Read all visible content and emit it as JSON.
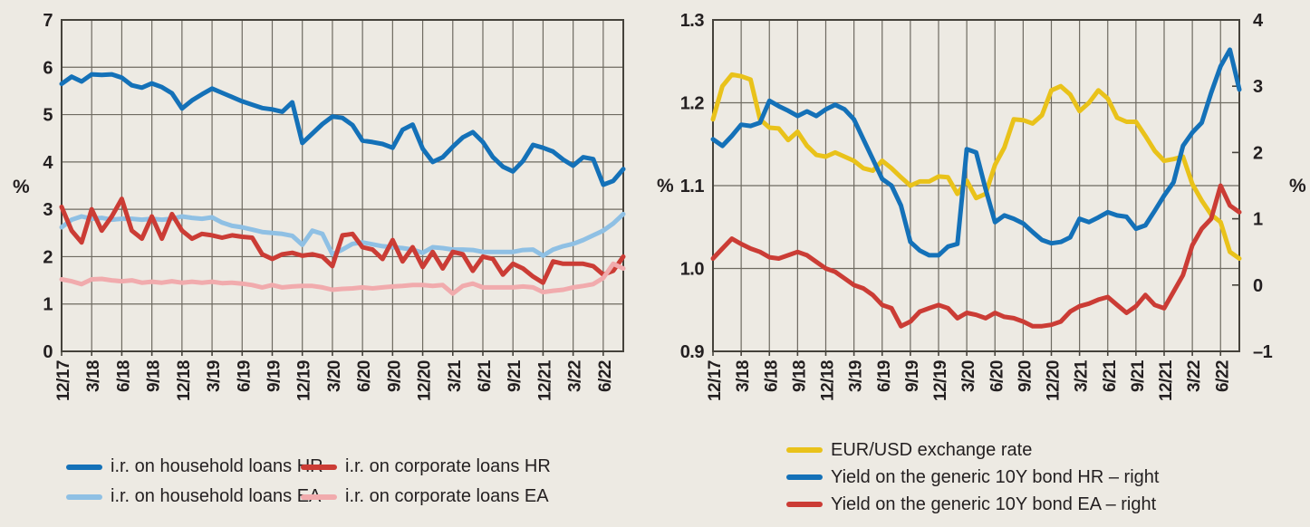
{
  "page": {
    "background": "#edeae3",
    "text_color": "#231f20",
    "gridline_color": "#6e6a61",
    "border_color": "#45423b"
  },
  "chart_data": [
    {
      "id": "loan-interest-rates",
      "type": "line",
      "x_frequency": "monthly",
      "x_start": "12/17",
      "x_end": "8/22",
      "months_total": 57,
      "x_tick_labels": [
        "12/17",
        "3/18",
        "6/18",
        "9/18",
        "12/18",
        "3/19",
        "6/19",
        "9/19",
        "12/19",
        "3/20",
        "6/20",
        "9/20",
        "12/20",
        "3/21",
        "6/21",
        "9/21",
        "12/21",
        "3/22",
        "6/22"
      ],
      "y_left": {
        "unit": "%",
        "min": 0,
        "max": 7,
        "tick_values": [
          0,
          1,
          2,
          3,
          4,
          5,
          6,
          7
        ],
        "tick_labels": [
          "0",
          "1",
          "2",
          "3",
          "4",
          "5",
          "6",
          "7"
        ]
      },
      "legend_position": "bottom",
      "series": [
        {
          "name": "i.r. on household loans HR",
          "color": "#1471b8",
          "axis": "left",
          "values": [
            5.65,
            5.8,
            5.7,
            5.85,
            5.84,
            5.85,
            5.78,
            5.62,
            5.57,
            5.66,
            5.58,
            5.45,
            5.13,
            5.3,
            5.43,
            5.55,
            5.46,
            5.37,
            5.28,
            5.21,
            5.14,
            5.11,
            5.06,
            5.26,
            4.4,
            4.6,
            4.8,
            4.96,
            4.93,
            4.78,
            4.45,
            4.42,
            4.38,
            4.3,
            4.68,
            4.79,
            4.28,
            4.0,
            4.1,
            4.32,
            4.52,
            4.63,
            4.42,
            4.1,
            3.9,
            3.8,
            4.02,
            4.36,
            4.3,
            4.22,
            4.05,
            3.92,
            4.1,
            4.06,
            3.52,
            3.6,
            3.85
          ]
        },
        {
          "name": "i.r. on household loans EA",
          "color": "#8fc0e4",
          "axis": "left",
          "values": [
            2.62,
            2.78,
            2.85,
            2.8,
            2.82,
            2.78,
            2.8,
            2.8,
            2.78,
            2.8,
            2.78,
            2.8,
            2.85,
            2.82,
            2.8,
            2.83,
            2.72,
            2.65,
            2.62,
            2.57,
            2.52,
            2.5,
            2.48,
            2.44,
            2.25,
            2.55,
            2.48,
            2.05,
            2.15,
            2.27,
            2.3,
            2.26,
            2.22,
            2.2,
            2.18,
            2.15,
            2.08,
            2.2,
            2.18,
            2.15,
            2.15,
            2.14,
            2.1,
            2.1,
            2.1,
            2.1,
            2.14,
            2.15,
            2.02,
            2.15,
            2.22,
            2.27,
            2.35,
            2.45,
            2.55,
            2.7,
            2.9
          ]
        },
        {
          "name": "i.r. on corporate loans HR",
          "color": "#cb3c35",
          "axis": "left",
          "values": [
            3.05,
            2.55,
            2.3,
            3.0,
            2.55,
            2.85,
            3.22,
            2.55,
            2.38,
            2.85,
            2.38,
            2.9,
            2.55,
            2.38,
            2.48,
            2.45,
            2.4,
            2.45,
            2.42,
            2.4,
            2.05,
            1.95,
            2.05,
            2.08,
            2.02,
            2.05,
            2.0,
            1.8,
            2.45,
            2.48,
            2.2,
            2.15,
            1.95,
            2.35,
            1.9,
            2.2,
            1.78,
            2.1,
            1.75,
            2.1,
            2.05,
            1.7,
            2.0,
            1.95,
            1.62,
            1.85,
            1.75,
            1.58,
            1.45,
            1.9,
            1.85,
            1.85,
            1.85,
            1.8,
            1.62,
            1.7,
            2.0
          ]
        },
        {
          "name": "i.r. on corporate loans EA",
          "color": "#f1abad",
          "axis": "left",
          "values": [
            1.52,
            1.48,
            1.42,
            1.52,
            1.53,
            1.5,
            1.48,
            1.5,
            1.45,
            1.47,
            1.45,
            1.48,
            1.45,
            1.47,
            1.45,
            1.47,
            1.44,
            1.45,
            1.43,
            1.4,
            1.35,
            1.4,
            1.35,
            1.37,
            1.38,
            1.38,
            1.35,
            1.3,
            1.32,
            1.33,
            1.35,
            1.33,
            1.35,
            1.37,
            1.38,
            1.4,
            1.4,
            1.38,
            1.4,
            1.22,
            1.38,
            1.43,
            1.35,
            1.35,
            1.35,
            1.35,
            1.37,
            1.35,
            1.25,
            1.28,
            1.3,
            1.35,
            1.38,
            1.42,
            1.55,
            1.85,
            1.75
          ]
        }
      ]
    },
    {
      "id": "fx-and-bond-yields",
      "type": "line",
      "x_frequency": "monthly",
      "x_start": "12/17",
      "x_end": "8/22",
      "months_total": 57,
      "x_tick_labels": [
        "12/17",
        "3/18",
        "6/18",
        "9/18",
        "12/18",
        "3/19",
        "6/19",
        "9/19",
        "12/19",
        "3/20",
        "6/20",
        "9/20",
        "12/20",
        "3/21",
        "6/21",
        "9/21",
        "12/21",
        "3/22",
        "6/22"
      ],
      "y_left": {
        "unit": "%",
        "min": 0.9,
        "max": 1.3,
        "tick_values": [
          0.9,
          1.0,
          1.1,
          1.2,
          1.3
        ],
        "tick_labels": [
          "0.9",
          "1.0",
          "1.1",
          "1.2",
          "1.3"
        ]
      },
      "y_right": {
        "unit": "%",
        "min": -1,
        "max": 4,
        "tick_values": [
          -1,
          0,
          1,
          2,
          3,
          4
        ],
        "tick_labels": [
          "–1",
          "0",
          "1",
          "2",
          "3",
          "4"
        ]
      },
      "legend_position": "bottom",
      "series": [
        {
          "name": "EUR/USD exchange rate",
          "color": "#e9c21a",
          "axis": "left",
          "values": [
            1.18,
            1.22,
            1.234,
            1.232,
            1.228,
            1.18,
            1.17,
            1.169,
            1.155,
            1.165,
            1.148,
            1.137,
            1.135,
            1.14,
            1.135,
            1.13,
            1.121,
            1.118,
            1.13,
            1.121,
            1.11,
            1.1,
            1.105,
            1.105,
            1.111,
            1.11,
            1.09,
            1.106,
            1.085,
            1.09,
            1.125,
            1.146,
            1.18,
            1.179,
            1.175,
            1.185,
            1.215,
            1.22,
            1.21,
            1.19,
            1.2,
            1.215,
            1.205,
            1.182,
            1.177,
            1.177,
            1.16,
            1.142,
            1.13,
            1.132,
            1.135,
            1.102,
            1.082,
            1.065,
            1.056,
            1.02,
            1.012
          ]
        },
        {
          "name": "Yield on the generic 10Y bond EA – right",
          "color": "#cb3c35",
          "axis": "right",
          "values": [
            0.4,
            0.55,
            0.7,
            0.62,
            0.55,
            0.5,
            0.42,
            0.4,
            0.45,
            0.5,
            0.45,
            0.35,
            0.25,
            0.2,
            0.1,
            0.0,
            -0.05,
            -0.15,
            -0.3,
            -0.35,
            -0.62,
            -0.55,
            -0.4,
            -0.35,
            -0.3,
            -0.35,
            -0.5,
            -0.42,
            -0.45,
            -0.5,
            -0.42,
            -0.48,
            -0.5,
            -0.55,
            -0.62,
            -0.62,
            -0.6,
            -0.55,
            -0.4,
            -0.32,
            -0.28,
            -0.22,
            -0.18,
            -0.3,
            -0.42,
            -0.32,
            -0.15,
            -0.3,
            -0.35,
            -0.1,
            0.15,
            0.6,
            0.85,
            1.0,
            1.5,
            1.2,
            1.1
          ]
        },
        {
          "name": "Yield on the generic 10Y bond HR – right",
          "color": "#1471b8",
          "axis": "right",
          "values": [
            2.2,
            2.1,
            2.25,
            2.42,
            2.4,
            2.45,
            2.78,
            2.7,
            2.63,
            2.55,
            2.62,
            2.55,
            2.65,
            2.72,
            2.65,
            2.5,
            2.2,
            1.9,
            1.6,
            1.5,
            1.2,
            0.65,
            0.52,
            0.45,
            0.45,
            0.58,
            0.62,
            2.05,
            2.0,
            1.45,
            0.95,
            1.05,
            1.0,
            0.93,
            0.8,
            0.68,
            0.63,
            0.65,
            0.72,
            1.0,
            0.95,
            1.02,
            1.1,
            1.05,
            1.03,
            0.85,
            0.9,
            1.12,
            1.35,
            1.55,
            2.1,
            2.3,
            2.45,
            2.9,
            3.3,
            3.55,
            2.95
          ]
        }
      ]
    }
  ],
  "legend_left": {
    "items": [
      "i.r. on household loans HR",
      "i.r. on household loans EA",
      "i.r. on corporate loans HR",
      "i.r. on corporate loans EA"
    ]
  },
  "legend_right": {
    "items": [
      "EUR/USD exchange rate",
      "Yield on the generic 10Y bond HR – right",
      "Yield on the generic 10Y bond EA – right"
    ]
  }
}
